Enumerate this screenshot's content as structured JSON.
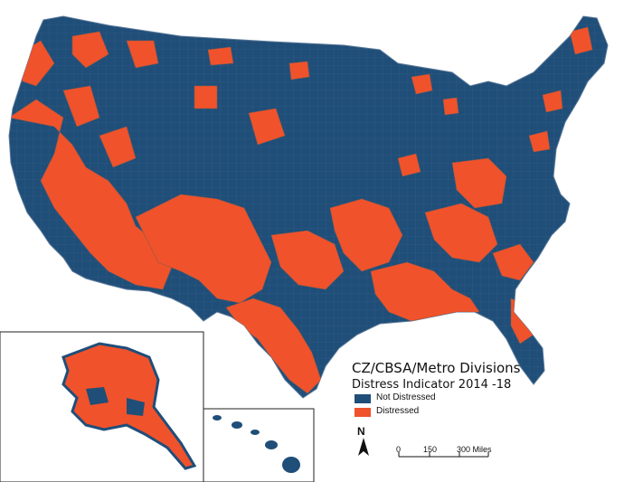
{
  "legend": {
    "title": "CZ/CBSA/Metro Divisions",
    "subtitle": "Distress Indicator 2014 -18",
    "items": [
      {
        "label": "Not Distressed",
        "color": "#1f4e79"
      },
      {
        "label": "Distressed",
        "color": "#f0522b"
      }
    ]
  },
  "north_arrow": {
    "label": "N"
  },
  "scale_bar": {
    "labels": [
      "0",
      "150",
      "300 Miles"
    ]
  },
  "colors": {
    "not_distressed": "#1f4e79",
    "distressed": "#f0522b",
    "border": "#7a8fa5",
    "background": "#ffffff"
  }
}
